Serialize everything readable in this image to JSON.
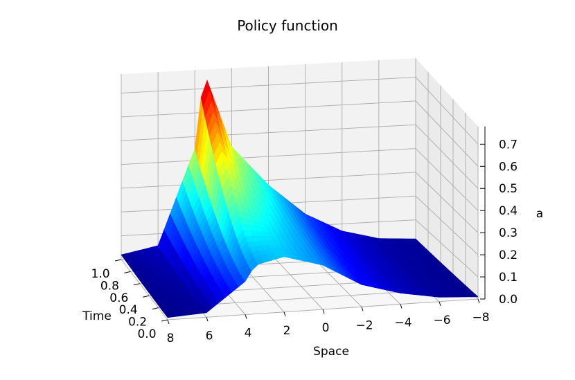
{
  "chart_data": {
    "type": "surface",
    "title": "Policy function",
    "xlabel": "Space",
    "ylabel": "Time",
    "zlabel": "a",
    "x_ticks": [
      "8",
      "6",
      "4",
      "2",
      "0",
      "−2",
      "−4",
      "−6",
      "−8"
    ],
    "y_ticks": [
      "0.0",
      "0.2",
      "0.4",
      "0.6",
      "0.8",
      "1.0"
    ],
    "z_ticks": [
      "0.0",
      "0.1",
      "0.2",
      "0.3",
      "0.4",
      "0.5",
      "0.6",
      "0.7"
    ],
    "xlim": [
      -8,
      8
    ],
    "ylim": [
      0,
      1
    ],
    "zlim": [
      0,
      0.78
    ],
    "grid": true,
    "colormap": "jet",
    "peak": {
      "space": 3.5,
      "time": 1.0,
      "a": 0.77
    },
    "surface_profile": {
      "description_values": "a(space,time) ~ peak value declines from time 1.0 to time 0.0",
      "space": [
        8,
        6,
        4,
        3.5,
        2,
        0,
        -2,
        -4,
        -6,
        -8
      ],
      "a_at_time_1": [
        0.02,
        0.05,
        0.45,
        0.77,
        0.45,
        0.28,
        0.15,
        0.07,
        0.03,
        0.02
      ],
      "a_at_time_0": [
        0.01,
        0.02,
        0.15,
        0.22,
        0.25,
        0.2,
        0.1,
        0.05,
        0.02,
        0.01
      ]
    }
  }
}
